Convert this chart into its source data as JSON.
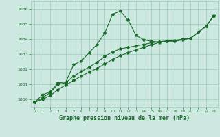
{
  "title": "Graphe pression niveau de la mer (hPa)",
  "background_color": "#cce8e0",
  "grid_color": "#99ccbb",
  "line_color": "#1a6b2a",
  "text_color": "#1a6b2a",
  "xlim": [
    -0.5,
    23.5
  ],
  "ylim": [
    1029.5,
    1036.5
  ],
  "yticks": [
    1030,
    1031,
    1032,
    1033,
    1034,
    1035,
    1036
  ],
  "xticks": [
    0,
    1,
    2,
    3,
    4,
    5,
    6,
    7,
    8,
    9,
    10,
    11,
    12,
    13,
    14,
    15,
    16,
    17,
    18,
    19,
    20,
    21,
    22,
    23
  ],
  "series1_x": [
    0,
    1,
    2,
    3,
    4,
    5,
    6,
    7,
    8,
    9,
    10,
    11,
    12,
    13,
    14,
    15,
    16,
    17,
    18,
    19,
    20,
    21,
    22,
    23
  ],
  "series1_y": [
    1029.8,
    1030.3,
    1030.5,
    1031.1,
    1031.15,
    1032.3,
    1032.55,
    1033.1,
    1033.65,
    1034.4,
    1035.65,
    1035.85,
    1035.25,
    1034.25,
    1033.95,
    1033.85,
    1033.8,
    1033.85,
    1033.85,
    1033.95,
    1034.05,
    1034.45,
    1034.85,
    1035.55
  ],
  "series2_x": [
    0,
    1,
    2,
    3,
    4,
    5,
    6,
    7,
    8,
    9,
    10,
    11,
    12,
    13,
    14,
    15,
    16,
    17,
    18,
    19,
    20,
    21,
    22,
    23
  ],
  "series2_y": [
    1029.8,
    1030.1,
    1030.45,
    1031.0,
    1031.1,
    1031.55,
    1031.85,
    1032.15,
    1032.45,
    1032.85,
    1033.15,
    1033.35,
    1033.45,
    1033.55,
    1033.65,
    1033.75,
    1033.82,
    1033.88,
    1033.92,
    1033.98,
    1034.05,
    1034.45,
    1034.85,
    1035.55
  ],
  "series3_x": [
    0,
    1,
    2,
    3,
    4,
    5,
    6,
    7,
    8,
    9,
    10,
    11,
    12,
    13,
    14,
    15,
    16,
    17,
    18,
    19,
    20,
    21,
    22,
    23
  ],
  "series3_y": [
    1029.8,
    1030.0,
    1030.25,
    1030.65,
    1030.95,
    1031.25,
    1031.55,
    1031.8,
    1032.05,
    1032.35,
    1032.65,
    1032.9,
    1033.1,
    1033.28,
    1033.45,
    1033.62,
    1033.78,
    1033.87,
    1033.91,
    1033.98,
    1034.05,
    1034.45,
    1034.85,
    1035.55
  ],
  "xlabel_fontsize": 6.0,
  "tick_fontsize": 4.5
}
